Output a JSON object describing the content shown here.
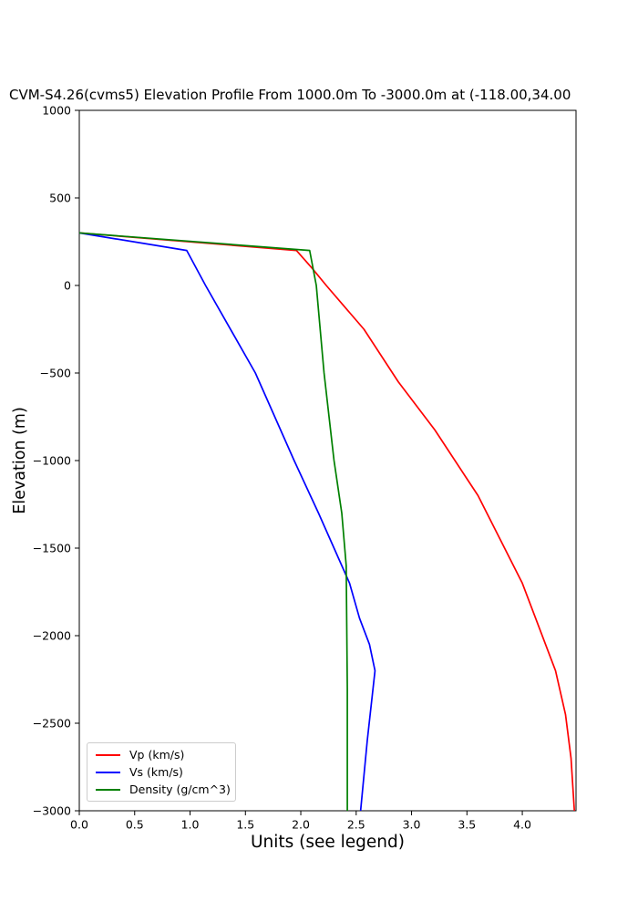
{
  "title": "CVM-S4.26(cvms5) Elevation Profile From 1000.0m To -3000.0m at (-118.00,34.00",
  "chart_data": {
    "type": "line",
    "title": "CVM-S4.26(cvms5) Elevation Profile From 1000.0m To -3000.0m at (-118.00,34.00",
    "xlabel": "Units (see legend)",
    "ylabel": "Elevation (m)",
    "xlim": [
      0,
      4.485
    ],
    "ylim": [
      -3000,
      1000
    ],
    "grid": false,
    "legend_position": "lower left",
    "xticks": [
      0.0,
      0.5,
      1.0,
      1.5,
      2.0,
      2.5,
      3.0,
      3.5,
      4.0
    ],
    "xtick_labels": [
      "0.0",
      "0.5",
      "1.0",
      "1.5",
      "2.0",
      "2.5",
      "3.0",
      "3.5",
      "4.0"
    ],
    "yticks": [
      1000,
      500,
      0,
      -500,
      -1000,
      -1500,
      -2000,
      -2500,
      -3000
    ],
    "ytick_labels": [
      "1000",
      "500",
      "0",
      "−500",
      "−1000",
      "−1500",
      "−2000",
      "−2500",
      "−3000"
    ],
    "series": [
      {
        "name": "Vp (km/s)",
        "color": "#ff0000",
        "points": [
          [
            0.0,
            300
          ],
          [
            1.96,
            200
          ],
          [
            2.1,
            100
          ],
          [
            2.23,
            0
          ],
          [
            2.57,
            -250
          ],
          [
            2.88,
            -550
          ],
          [
            3.21,
            -825
          ],
          [
            3.6,
            -1200
          ],
          [
            4.0,
            -1700
          ],
          [
            4.3,
            -2200
          ],
          [
            4.39,
            -2450
          ],
          [
            4.44,
            -2700
          ],
          [
            4.47,
            -3000
          ]
        ]
      },
      {
        "name": "Vs (km/s)",
        "color": "#0000ff",
        "points": [
          [
            0.0,
            300
          ],
          [
            0.97,
            200
          ],
          [
            1.14,
            0
          ],
          [
            1.41,
            -300
          ],
          [
            1.59,
            -500
          ],
          [
            1.8,
            -800
          ],
          [
            1.94,
            -1000
          ],
          [
            2.16,
            -1300
          ],
          [
            2.3,
            -1500
          ],
          [
            2.44,
            -1700
          ],
          [
            2.53,
            -1900
          ],
          [
            2.62,
            -2050
          ],
          [
            2.67,
            -2200
          ],
          [
            2.6,
            -2600
          ],
          [
            2.54,
            -3000
          ]
        ]
      },
      {
        "name": "Density (g/cm^3)",
        "color": "#008000",
        "points": [
          [
            0.0,
            300
          ],
          [
            2.08,
            200
          ],
          [
            2.14,
            0
          ],
          [
            2.21,
            -500
          ],
          [
            2.3,
            -1000
          ],
          [
            2.37,
            -1300
          ],
          [
            2.41,
            -1600
          ],
          [
            2.42,
            -2300
          ],
          [
            2.42,
            -3000
          ]
        ]
      }
    ]
  },
  "legend": {
    "items": [
      {
        "label": "Vp (km/s)",
        "color": "#ff0000"
      },
      {
        "label": "Vs (km/s)",
        "color": "#0000ff"
      },
      {
        "label": "Density (g/cm^3)",
        "color": "#008000"
      }
    ]
  }
}
